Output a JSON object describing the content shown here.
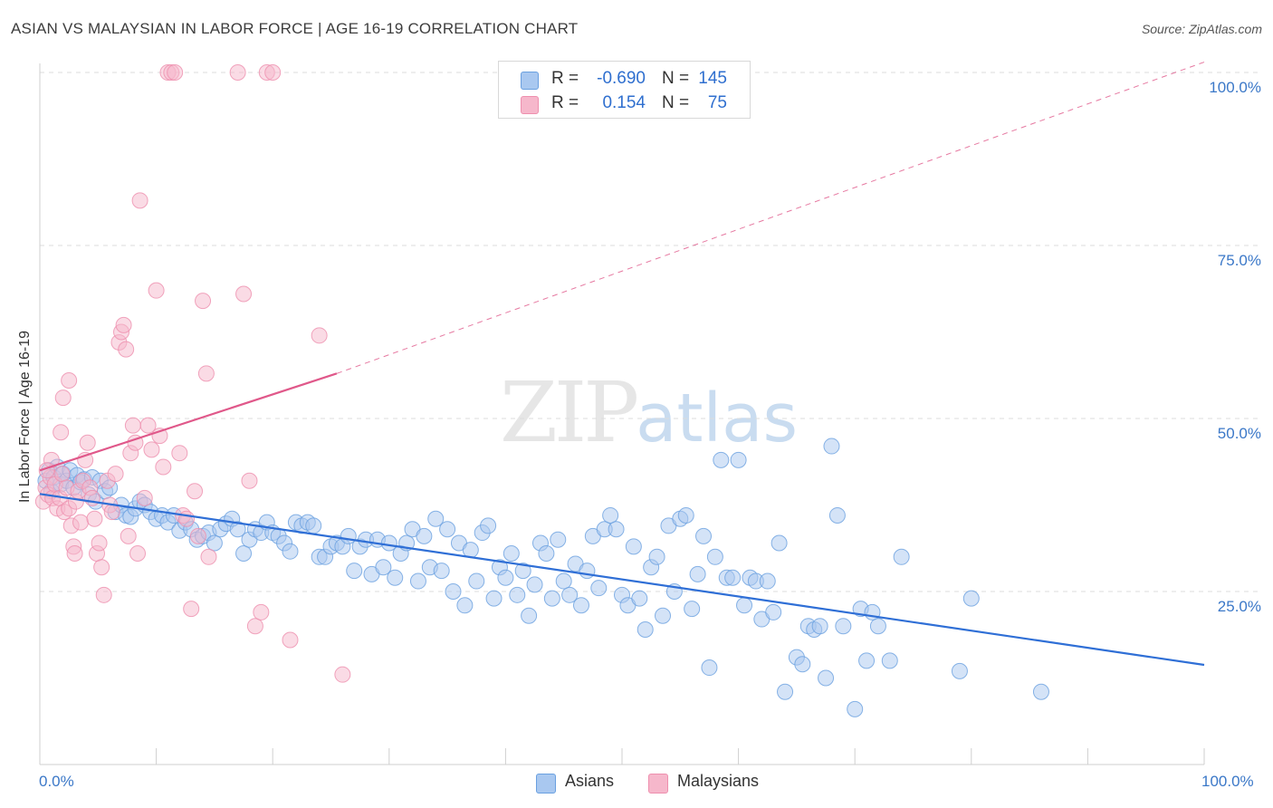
{
  "title": "ASIAN VS MALAYSIAN IN LABOR FORCE | AGE 16-19 CORRELATION CHART",
  "source": "Source: ZipAtlas.com",
  "watermark": {
    "zip": "ZIP",
    "atlas": "atlas"
  },
  "legend": {
    "rows": [
      {
        "r_label": "R =",
        "r_value": "-0.690",
        "n_label": "N =",
        "n_value": "145",
        "color": "#a9c8f0"
      },
      {
        "r_label": "R =",
        "r_value": "0.154",
        "n_label": "N =",
        "n_value": "75",
        "color": "#f6b7cb"
      }
    ]
  },
  "bottom_legend": [
    {
      "label": "Asians",
      "color": "#a9c8f0"
    },
    {
      "label": "Malaysians",
      "color": "#f6b7cb"
    }
  ],
  "chart_data": {
    "type": "scatter",
    "title": "ASIAN VS MALAYSIAN IN LABOR FORCE | AGE 16-19 CORRELATION CHART",
    "xlabel": "",
    "ylabel": "In Labor Force | Age 16-19",
    "xlim": [
      0,
      100
    ],
    "ylim": [
      0,
      102
    ],
    "x_tick_labels": [
      "0.0%",
      "100.0%"
    ],
    "y_ticks": [
      25,
      50,
      75,
      100
    ],
    "y_tick_labels": [
      "25.0%",
      "50.0%",
      "75.0%",
      "100.0%"
    ],
    "grid": true,
    "series": [
      {
        "name": "Asians",
        "color": "#6aa0e0",
        "fill": "#a9c8f0",
        "trend": {
          "x0": 0,
          "y0": 39.1,
          "x1": 100,
          "y1": 14.4,
          "color": "#2f6fd6",
          "dashed_extension": false
        },
        "points": [
          [
            0.5,
            41.0
          ],
          [
            0.8,
            42.5
          ],
          [
            1.0,
            39.5
          ],
          [
            1.2,
            41.5
          ],
          [
            1.5,
            43.0
          ],
          [
            1.8,
            40.5
          ],
          [
            2.0,
            42.0
          ],
          [
            2.3,
            41.0
          ],
          [
            2.6,
            42.5
          ],
          [
            2.9,
            40.0
          ],
          [
            3.2,
            41.8
          ],
          [
            3.5,
            40.8
          ],
          [
            3.8,
            41.2
          ],
          [
            4.2,
            39.0
          ],
          [
            4.5,
            41.5
          ],
          [
            4.8,
            38.0
          ],
          [
            5.2,
            41.0
          ],
          [
            5.6,
            39.5
          ],
          [
            6.0,
            40.0
          ],
          [
            6.5,
            36.5
          ],
          [
            7.0,
            37.5
          ],
          [
            7.4,
            36.0
          ],
          [
            7.8,
            35.8
          ],
          [
            8.2,
            37.0
          ],
          [
            8.6,
            38.0
          ],
          [
            9.0,
            37.5
          ],
          [
            9.5,
            36.5
          ],
          [
            10.0,
            35.5
          ],
          [
            10.5,
            36.0
          ],
          [
            11.0,
            35.0
          ],
          [
            11.5,
            36.0
          ],
          [
            12.0,
            33.8
          ],
          [
            12.5,
            35.0
          ],
          [
            13.0,
            34.0
          ],
          [
            13.5,
            32.5
          ],
          [
            14.0,
            33.0
          ],
          [
            14.5,
            33.5
          ],
          [
            15.0,
            32.0
          ],
          [
            15.5,
            34.0
          ],
          [
            16.0,
            34.8
          ],
          [
            16.5,
            35.5
          ],
          [
            17.0,
            34.0
          ],
          [
            17.5,
            30.5
          ],
          [
            18.0,
            32.5
          ],
          [
            18.5,
            34.0
          ],
          [
            19.0,
            33.5
          ],
          [
            19.5,
            35.0
          ],
          [
            20.0,
            33.5
          ],
          [
            20.5,
            33.0
          ],
          [
            21.0,
            32.0
          ],
          [
            21.5,
            30.8
          ],
          [
            22.0,
            35.0
          ],
          [
            22.5,
            34.5
          ],
          [
            23.0,
            35.0
          ],
          [
            23.5,
            34.5
          ],
          [
            24.0,
            30.0
          ],
          [
            24.5,
            30.0
          ],
          [
            25.0,
            31.5
          ],
          [
            25.5,
            32.0
          ],
          [
            26.0,
            31.5
          ],
          [
            26.5,
            33.0
          ],
          [
            27.0,
            28.0
          ],
          [
            27.5,
            31.5
          ],
          [
            28.0,
            32.5
          ],
          [
            28.5,
            27.5
          ],
          [
            29.0,
            32.5
          ],
          [
            29.5,
            28.5
          ],
          [
            30.0,
            32.0
          ],
          [
            30.5,
            27.0
          ],
          [
            31.0,
            30.5
          ],
          [
            31.5,
            32.0
          ],
          [
            32.0,
            34.0
          ],
          [
            32.5,
            26.5
          ],
          [
            33.0,
            33.0
          ],
          [
            33.5,
            28.5
          ],
          [
            34.0,
            35.5
          ],
          [
            34.5,
            28.0
          ],
          [
            35.0,
            34.0
          ],
          [
            35.5,
            25.0
          ],
          [
            36.0,
            32.0
          ],
          [
            36.5,
            23.0
          ],
          [
            37.0,
            31.0
          ],
          [
            37.5,
            26.5
          ],
          [
            38.0,
            33.5
          ],
          [
            38.5,
            34.5
          ],
          [
            39.0,
            24.0
          ],
          [
            39.5,
            28.5
          ],
          [
            40.0,
            27.0
          ],
          [
            40.5,
            30.5
          ],
          [
            41.0,
            24.5
          ],
          [
            41.5,
            28.0
          ],
          [
            42.0,
            21.5
          ],
          [
            42.5,
            26.0
          ],
          [
            43.0,
            32.0
          ],
          [
            43.5,
            30.5
          ],
          [
            44.0,
            24.0
          ],
          [
            44.5,
            32.5
          ],
          [
            45.0,
            26.5
          ],
          [
            45.5,
            24.5
          ],
          [
            46.0,
            29.0
          ],
          [
            46.5,
            23.0
          ],
          [
            47.0,
            28.0
          ],
          [
            47.5,
            33.0
          ],
          [
            48.0,
            25.5
          ],
          [
            48.5,
            34.0
          ],
          [
            49.0,
            36.0
          ],
          [
            49.5,
            34.0
          ],
          [
            50.0,
            24.5
          ],
          [
            50.5,
            23.0
          ],
          [
            51.0,
            31.5
          ],
          [
            51.5,
            24.0
          ],
          [
            52.0,
            19.5
          ],
          [
            52.5,
            28.5
          ],
          [
            53.0,
            30.0
          ],
          [
            53.5,
            21.5
          ],
          [
            54.0,
            34.5
          ],
          [
            54.5,
            25.0
          ],
          [
            55.0,
            35.5
          ],
          [
            55.5,
            36.0
          ],
          [
            56.0,
            22.5
          ],
          [
            56.5,
            27.5
          ],
          [
            57.0,
            33.0
          ],
          [
            57.5,
            14.0
          ],
          [
            58.0,
            30.0
          ],
          [
            58.5,
            44.0
          ],
          [
            59.0,
            27.0
          ],
          [
            59.5,
            27.0
          ],
          [
            60.0,
            44.0
          ],
          [
            60.5,
            23.0
          ],
          [
            61.0,
            27.0
          ],
          [
            61.5,
            26.5
          ],
          [
            62.0,
            21.0
          ],
          [
            62.5,
            26.5
          ],
          [
            63.0,
            22.0
          ],
          [
            63.5,
            32.0
          ],
          [
            64.0,
            10.5
          ],
          [
            65.0,
            15.5
          ],
          [
            65.5,
            14.5
          ],
          [
            66.0,
            20.0
          ],
          [
            66.5,
            19.5
          ],
          [
            67.0,
            20.0
          ],
          [
            67.5,
            12.5
          ],
          [
            68.0,
            46.0
          ],
          [
            68.5,
            36.0
          ],
          [
            69.0,
            20.0
          ],
          [
            70.0,
            8.0
          ],
          [
            70.5,
            22.5
          ],
          [
            71.0,
            15.0
          ],
          [
            71.5,
            22.0
          ],
          [
            72.0,
            20.0
          ],
          [
            73.0,
            15.0
          ],
          [
            74.0,
            30.0
          ],
          [
            79.0,
            13.5
          ],
          [
            80.0,
            24.0
          ],
          [
            86.0,
            10.5
          ]
        ]
      },
      {
        "name": "Malaysians",
        "color": "#ee8fae",
        "fill": "#f6b7cb",
        "trend": {
          "x0": 0,
          "y0": 42.5,
          "x1": 25.5,
          "y1": 56.5,
          "color": "#e0588a",
          "ext_x1": 100,
          "ext_y1": 101.5,
          "dashed_extension": true
        },
        "points": [
          [
            0.3,
            38.0
          ],
          [
            0.5,
            40.0
          ],
          [
            0.7,
            39.0
          ],
          [
            0.9,
            41.5
          ],
          [
            1.1,
            38.5
          ],
          [
            1.3,
            40.5
          ],
          [
            1.5,
            37.0
          ],
          [
            1.7,
            38.5
          ],
          [
            1.9,
            42.0
          ],
          [
            2.1,
            36.5
          ],
          [
            2.3,
            40.0
          ],
          [
            2.5,
            37.0
          ],
          [
            2.7,
            34.5
          ],
          [
            2.9,
            31.5
          ],
          [
            3.1,
            38.0
          ],
          [
            3.3,
            39.5
          ],
          [
            3.5,
            35.0
          ],
          [
            3.7,
            41.0
          ],
          [
            3.9,
            44.0
          ],
          [
            4.1,
            46.5
          ],
          [
            4.3,
            40.0
          ],
          [
            4.5,
            38.5
          ],
          [
            4.7,
            35.5
          ],
          [
            4.9,
            30.5
          ],
          [
            5.1,
            32.0
          ],
          [
            5.3,
            28.5
          ],
          [
            5.5,
            24.5
          ],
          [
            5.8,
            41.0
          ],
          [
            6.0,
            37.5
          ],
          [
            6.2,
            36.5
          ],
          [
            6.5,
            42.0
          ],
          [
            6.8,
            61.0
          ],
          [
            7.0,
            62.5
          ],
          [
            7.2,
            63.5
          ],
          [
            7.4,
            60.0
          ],
          [
            7.6,
            33.0
          ],
          [
            7.8,
            45.0
          ],
          [
            8.0,
            49.0
          ],
          [
            8.2,
            46.5
          ],
          [
            8.4,
            30.5
          ],
          [
            8.6,
            81.5
          ],
          [
            9.0,
            38.5
          ],
          [
            9.3,
            49.0
          ],
          [
            9.6,
            45.5
          ],
          [
            10.0,
            68.5
          ],
          [
            10.3,
            47.5
          ],
          [
            10.6,
            43.0
          ],
          [
            11.0,
            100.0
          ],
          [
            11.3,
            100.0
          ],
          [
            11.6,
            100.0
          ],
          [
            12.0,
            45.0
          ],
          [
            12.3,
            36.0
          ],
          [
            12.6,
            35.5
          ],
          [
            13.0,
            22.5
          ],
          [
            13.3,
            39.5
          ],
          [
            13.6,
            33.0
          ],
          [
            14.0,
            67.0
          ],
          [
            14.3,
            56.5
          ],
          [
            14.5,
            30.0
          ],
          [
            17.0,
            100.0
          ],
          [
            17.5,
            68.0
          ],
          [
            18.0,
            41.0
          ],
          [
            18.5,
            20.0
          ],
          [
            19.0,
            22.0
          ],
          [
            19.5,
            100.0
          ],
          [
            20.0,
            100.0
          ],
          [
            21.5,
            18.0
          ],
          [
            24.0,
            62.0
          ],
          [
            26.0,
            13.0
          ],
          [
            2.5,
            55.5
          ],
          [
            2.0,
            53.0
          ],
          [
            1.8,
            48.0
          ],
          [
            1.0,
            44.0
          ],
          [
            0.6,
            42.5
          ],
          [
            3.0,
            30.5
          ]
        ]
      }
    ]
  }
}
